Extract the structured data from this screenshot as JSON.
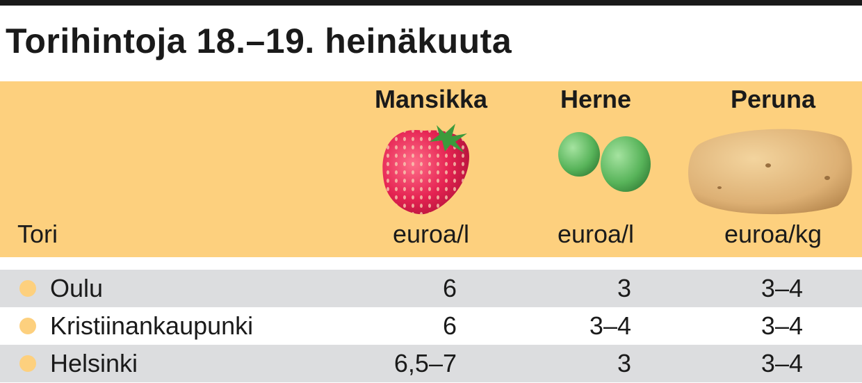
{
  "title": "Torihintoja 18.–19. heinäkuuta",
  "table": {
    "header": [
      "Tori",
      "Mansikka",
      "Herne",
      "Peruna"
    ],
    "units": [
      "euroa/l",
      "euroa/l",
      "euroa/kg"
    ],
    "rows": [
      [
        "Oulu",
        6,
        3,
        "3–4"
      ],
      [
        "Kristiinankaupunki",
        6,
        "3–4",
        "3–4"
      ],
      [
        "Helsinki",
        "6,5–7",
        3,
        "3–4"
      ]
    ]
  }
}
